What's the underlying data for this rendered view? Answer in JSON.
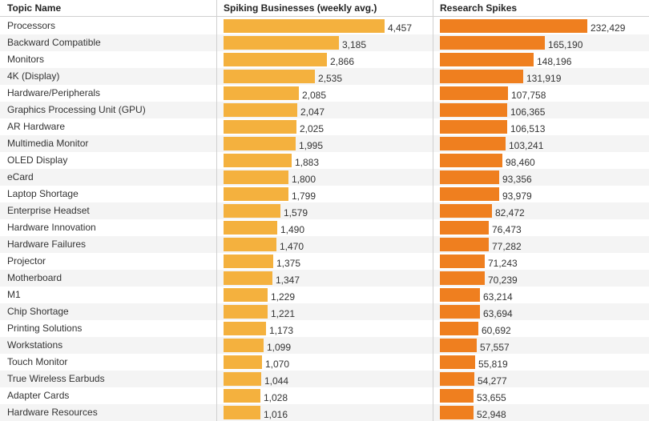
{
  "chart_data": {
    "type": "table",
    "columns": [
      "Topic Name",
      "Spiking Businesses (weekly avg.)",
      "Research Spikes"
    ],
    "series": [
      {
        "name": "Spiking Businesses (weekly avg.)",
        "color": "#f4b13e",
        "max": 4457,
        "values": [
          4457,
          3185,
          2866,
          2535,
          2085,
          2047,
          2025,
          1995,
          1883,
          1800,
          1799,
          1579,
          1490,
          1470,
          1375,
          1347,
          1229,
          1221,
          1173,
          1099,
          1070,
          1044,
          1028,
          1016
        ]
      },
      {
        "name": "Research Spikes",
        "color": "#ef7f1f",
        "max": 232429,
        "values": [
          232429,
          165190,
          148196,
          131919,
          107758,
          106365,
          106513,
          103241,
          98460,
          93356,
          93979,
          82472,
          76473,
          77282,
          71243,
          70239,
          63214,
          63694,
          60692,
          57557,
          55819,
          54277,
          53655,
          52948
        ]
      }
    ],
    "rows": [
      {
        "topic": "Processors",
        "businesses": "4,457",
        "spikes": "232,429"
      },
      {
        "topic": "Backward Compatible",
        "businesses": "3,185",
        "spikes": "165,190"
      },
      {
        "topic": "Monitors",
        "businesses": "2,866",
        "spikes": "148,196"
      },
      {
        "topic": "4K (Display)",
        "businesses": "2,535",
        "spikes": "131,919"
      },
      {
        "topic": "Hardware/Peripherals",
        "businesses": "2,085",
        "spikes": "107,758"
      },
      {
        "topic": "Graphics Processing Unit (GPU)",
        "businesses": "2,047",
        "spikes": "106,365"
      },
      {
        "topic": "AR Hardware",
        "businesses": "2,025",
        "spikes": "106,513"
      },
      {
        "topic": "Multimedia Monitor",
        "businesses": "1,995",
        "spikes": "103,241"
      },
      {
        "topic": "OLED Display",
        "businesses": "1,883",
        "spikes": "98,460"
      },
      {
        "topic": "eCard",
        "businesses": "1,800",
        "spikes": "93,356"
      },
      {
        "topic": "Laptop Shortage",
        "businesses": "1,799",
        "spikes": "93,979"
      },
      {
        "topic": "Enterprise Headset",
        "businesses": "1,579",
        "spikes": "82,472"
      },
      {
        "topic": "Hardware Innovation",
        "businesses": "1,490",
        "spikes": "76,473"
      },
      {
        "topic": "Hardware Failures",
        "businesses": "1,470",
        "spikes": "77,282"
      },
      {
        "topic": "Projector",
        "businesses": "1,375",
        "spikes": "71,243"
      },
      {
        "topic": "Motherboard",
        "businesses": "1,347",
        "spikes": "70,239"
      },
      {
        "topic": "M1",
        "businesses": "1,229",
        "spikes": "63,214"
      },
      {
        "topic": "Chip Shortage",
        "businesses": "1,221",
        "spikes": "63,694"
      },
      {
        "topic": "Printing Solutions",
        "businesses": "1,173",
        "spikes": "60,692"
      },
      {
        "topic": "Workstations",
        "businesses": "1,099",
        "spikes": "57,557"
      },
      {
        "topic": "Touch Monitor",
        "businesses": "1,070",
        "spikes": "55,819"
      },
      {
        "topic": "True Wireless Earbuds",
        "businesses": "1,044",
        "spikes": "54,277"
      },
      {
        "topic": "Adapter Cards",
        "businesses": "1,028",
        "spikes": "53,655"
      },
      {
        "topic": "Hardware Resources",
        "businesses": "1,016",
        "spikes": "52,948"
      }
    ]
  }
}
